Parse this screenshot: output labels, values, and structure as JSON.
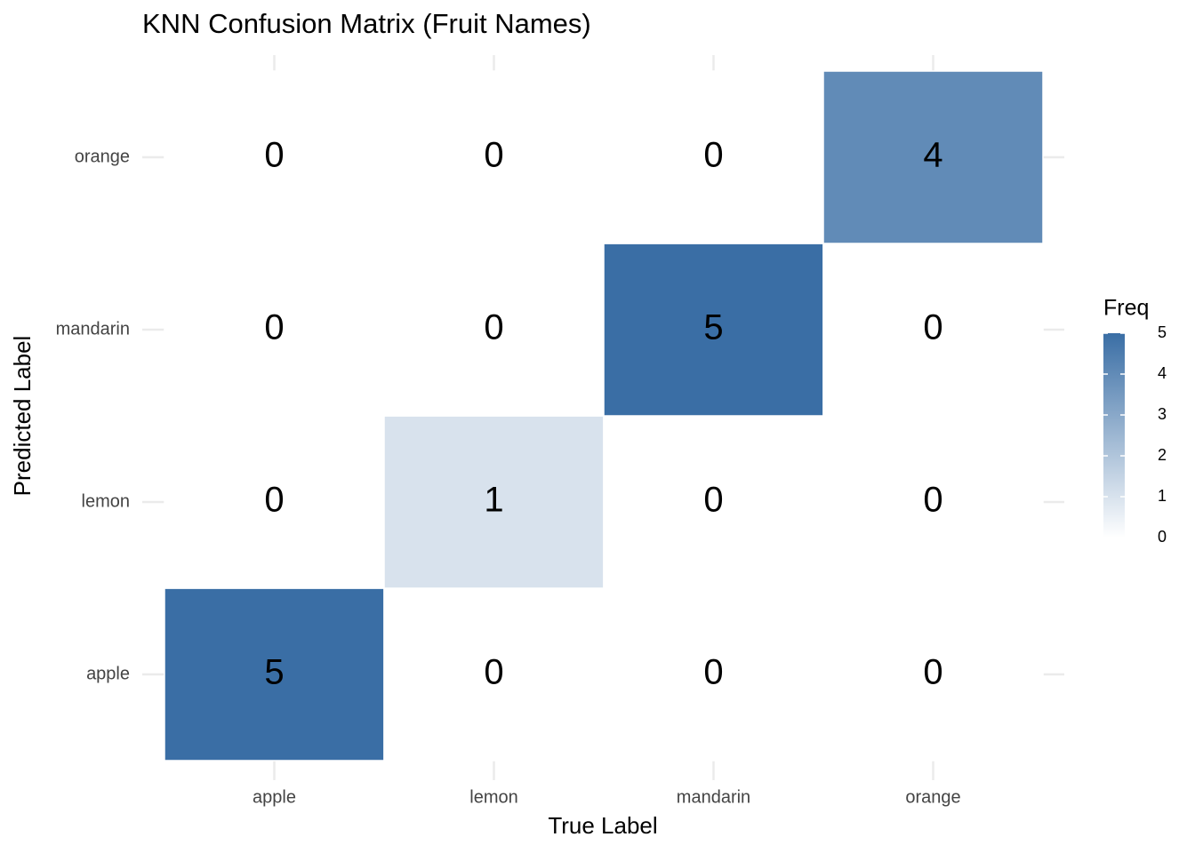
{
  "chart_data": {
    "type": "heatmap",
    "title": "KNN Confusion Matrix (Fruit Names)",
    "x_label": "True Label",
    "y_label": "Predicted Label",
    "x_categories": [
      "apple",
      "lemon",
      "mandarin",
      "orange"
    ],
    "y_categories": [
      "apple",
      "lemon",
      "mandarin",
      "orange"
    ],
    "values": [
      [
        5,
        0,
        0,
        0
      ],
      [
        0,
        1,
        0,
        0
      ],
      [
        0,
        0,
        5,
        0
      ],
      [
        0,
        0,
        0,
        4
      ]
    ],
    "legend_title": "Freq",
    "color_lim": [
      0,
      5
    ],
    "legend_ticks": [
      0,
      1,
      2,
      3,
      4,
      5
    ],
    "low_color": "#ffffff",
    "high_color": "#3a6ea5",
    "grid": true
  }
}
